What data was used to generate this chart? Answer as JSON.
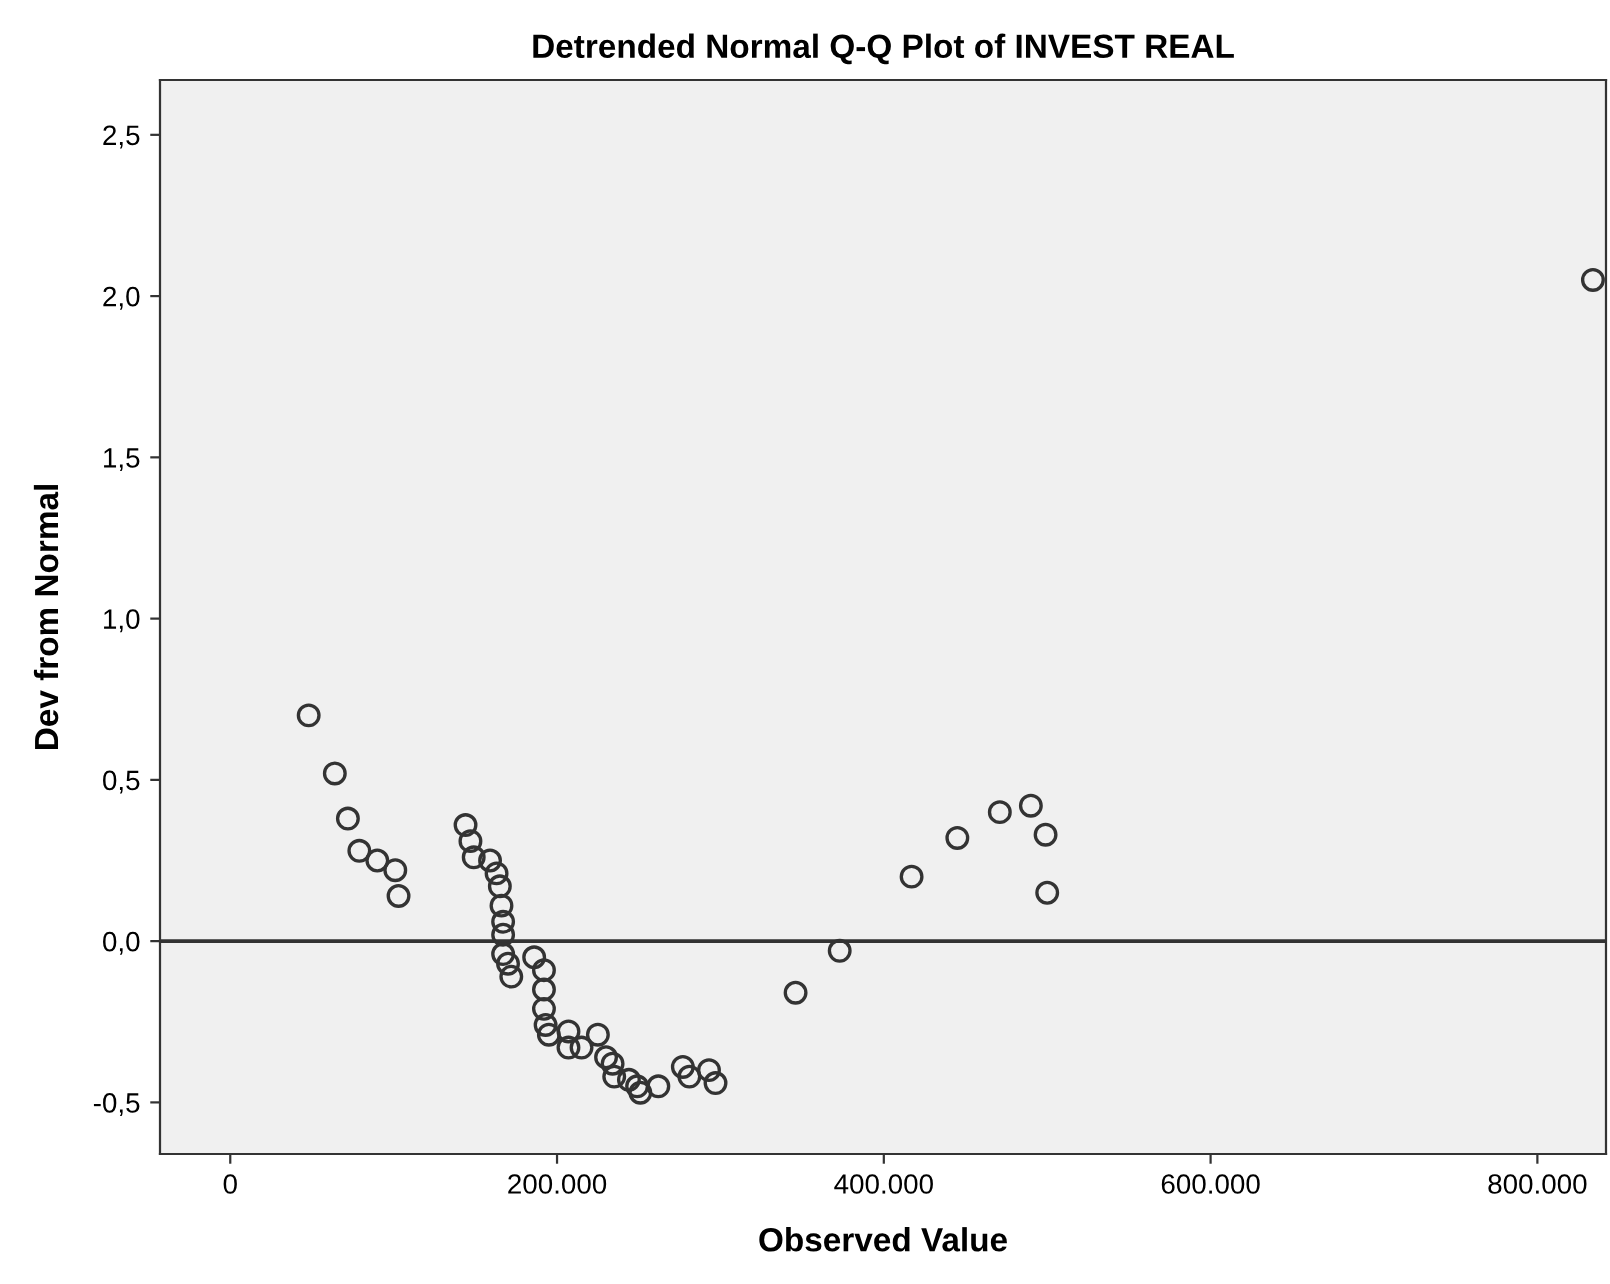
{
  "chart_data": {
    "type": "scatter",
    "title": "Detrended Normal Q-Q Plot of INVEST REAL",
    "xlabel": "Observed Value",
    "ylabel": "Dev from Normal",
    "x": [
      48000,
      64000,
      72000,
      79000,
      90000,
      101000,
      103000,
      144000,
      147000,
      149000,
      159000,
      163000,
      165000,
      166000,
      167000,
      167000,
      167000,
      170000,
      172000,
      186000,
      192000,
      192000,
      192000,
      193000,
      195000,
      196000,
      207000,
      207000,
      215000,
      225000,
      227000,
      230000,
      234000,
      235000,
      244000,
      249000,
      251000,
      262000,
      277000,
      281000,
      293000,
      297000,
      346000,
      373000,
      417000,
      445000,
      471000,
      490000,
      499000,
      500000,
      834000
    ],
    "values": [
      0.7,
      0.52,
      0.38,
      0.28,
      0.25,
      0.22,
      0.14,
      0.36,
      0.31,
      0.26,
      0.25,
      0.21,
      0.17,
      0.11,
      0.06,
      0.02,
      -0.04,
      -0.07,
      -0.11,
      -0.05,
      -0.09,
      -0.15,
      -0.21,
      -0.26,
      -0.29,
      null,
      -0.28,
      -0.33,
      -0.33,
      -0.29,
      null,
      -0.36,
      -0.38,
      -0.42,
      -0.43,
      -0.45,
      -0.47,
      -0.45,
      -0.39,
      -0.42,
      -0.4,
      -0.44,
      -0.16,
      -0.03,
      0.2,
      0.32,
      0.4,
      0.42,
      0.33,
      0.15,
      2.05
    ],
    "color": "#333333",
    "marker": "circle",
    "grid": false,
    "legend": false,
    "xlim": [
      -43000,
      842000
    ],
    "ylim": [
      -0.66,
      2.67
    ],
    "xticks": [
      0,
      {
        "value": 200000,
        "label": "200.000"
      },
      {
        "value": 400000,
        "label": "400.000"
      },
      {
        "value": 600000,
        "label": "600.000"
      },
      {
        "value": 800000,
        "label": "800.000"
      }
    ],
    "yticks": [
      {
        "value": -0.5,
        "label": "-0,5"
      },
      {
        "value": 0,
        "label": "0,0"
      },
      {
        "value": 0.5,
        "label": "0,5"
      },
      {
        "value": 1,
        "label": "1,0"
      },
      {
        "value": 1.5,
        "label": "1,5"
      },
      {
        "value": 2,
        "label": "2,0"
      },
      {
        "value": 2.5,
        "label": "2,5"
      }
    ],
    "ref_lines": [
      {
        "axis": "y",
        "value": 0,
        "color": "#333333"
      }
    ]
  }
}
